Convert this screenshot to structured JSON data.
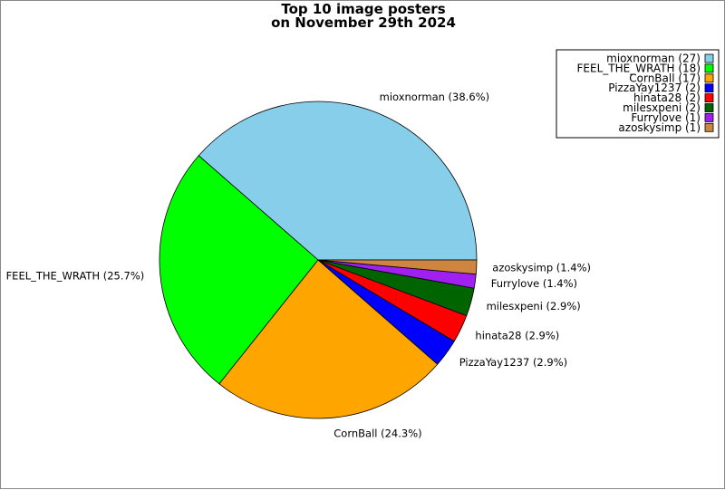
{
  "chart_data": {
    "type": "pie",
    "title_lines": [
      "Top 10 image posters",
      "on November 29th 2024"
    ],
    "categories": [
      "mioxnorman",
      "FEEL_THE_WRATH",
      "CornBall",
      "PizzaYay1237",
      "hinata28",
      "milesxpeni",
      "Furrylove",
      "azoskysimp"
    ],
    "values": [
      27,
      18,
      17,
      2,
      2,
      2,
      1,
      1
    ],
    "percent_labels": [
      "mioxnorman (38.6%)",
      "FEEL_THE_WRATH (25.7%)",
      "CornBall (24.3%)",
      "PizzaYay1237 (2.9%)",
      "hinata28 (2.9%)",
      "milesxpeni (2.9%)",
      "Furrylove (1.4%)",
      "azoskysimp (1.4%)"
    ],
    "legend_labels": [
      "mioxnorman (27)",
      "FEEL_THE_WRATH (18)",
      "CornBall (17)",
      "PizzaYay1237 (2)",
      "hinata28 (2)",
      "milesxpeni (2)",
      "Furrylove (1)",
      "azoskysimp (1)"
    ],
    "colors": [
      "#87ceeb",
      "#00ff00",
      "#ffa500",
      "#0000ff",
      "#ff0000",
      "#006400",
      "#a020f0",
      "#cd853f"
    ],
    "start_angle_deg": 0,
    "direction": "counterclockwise",
    "legend_position": "top-right"
  }
}
